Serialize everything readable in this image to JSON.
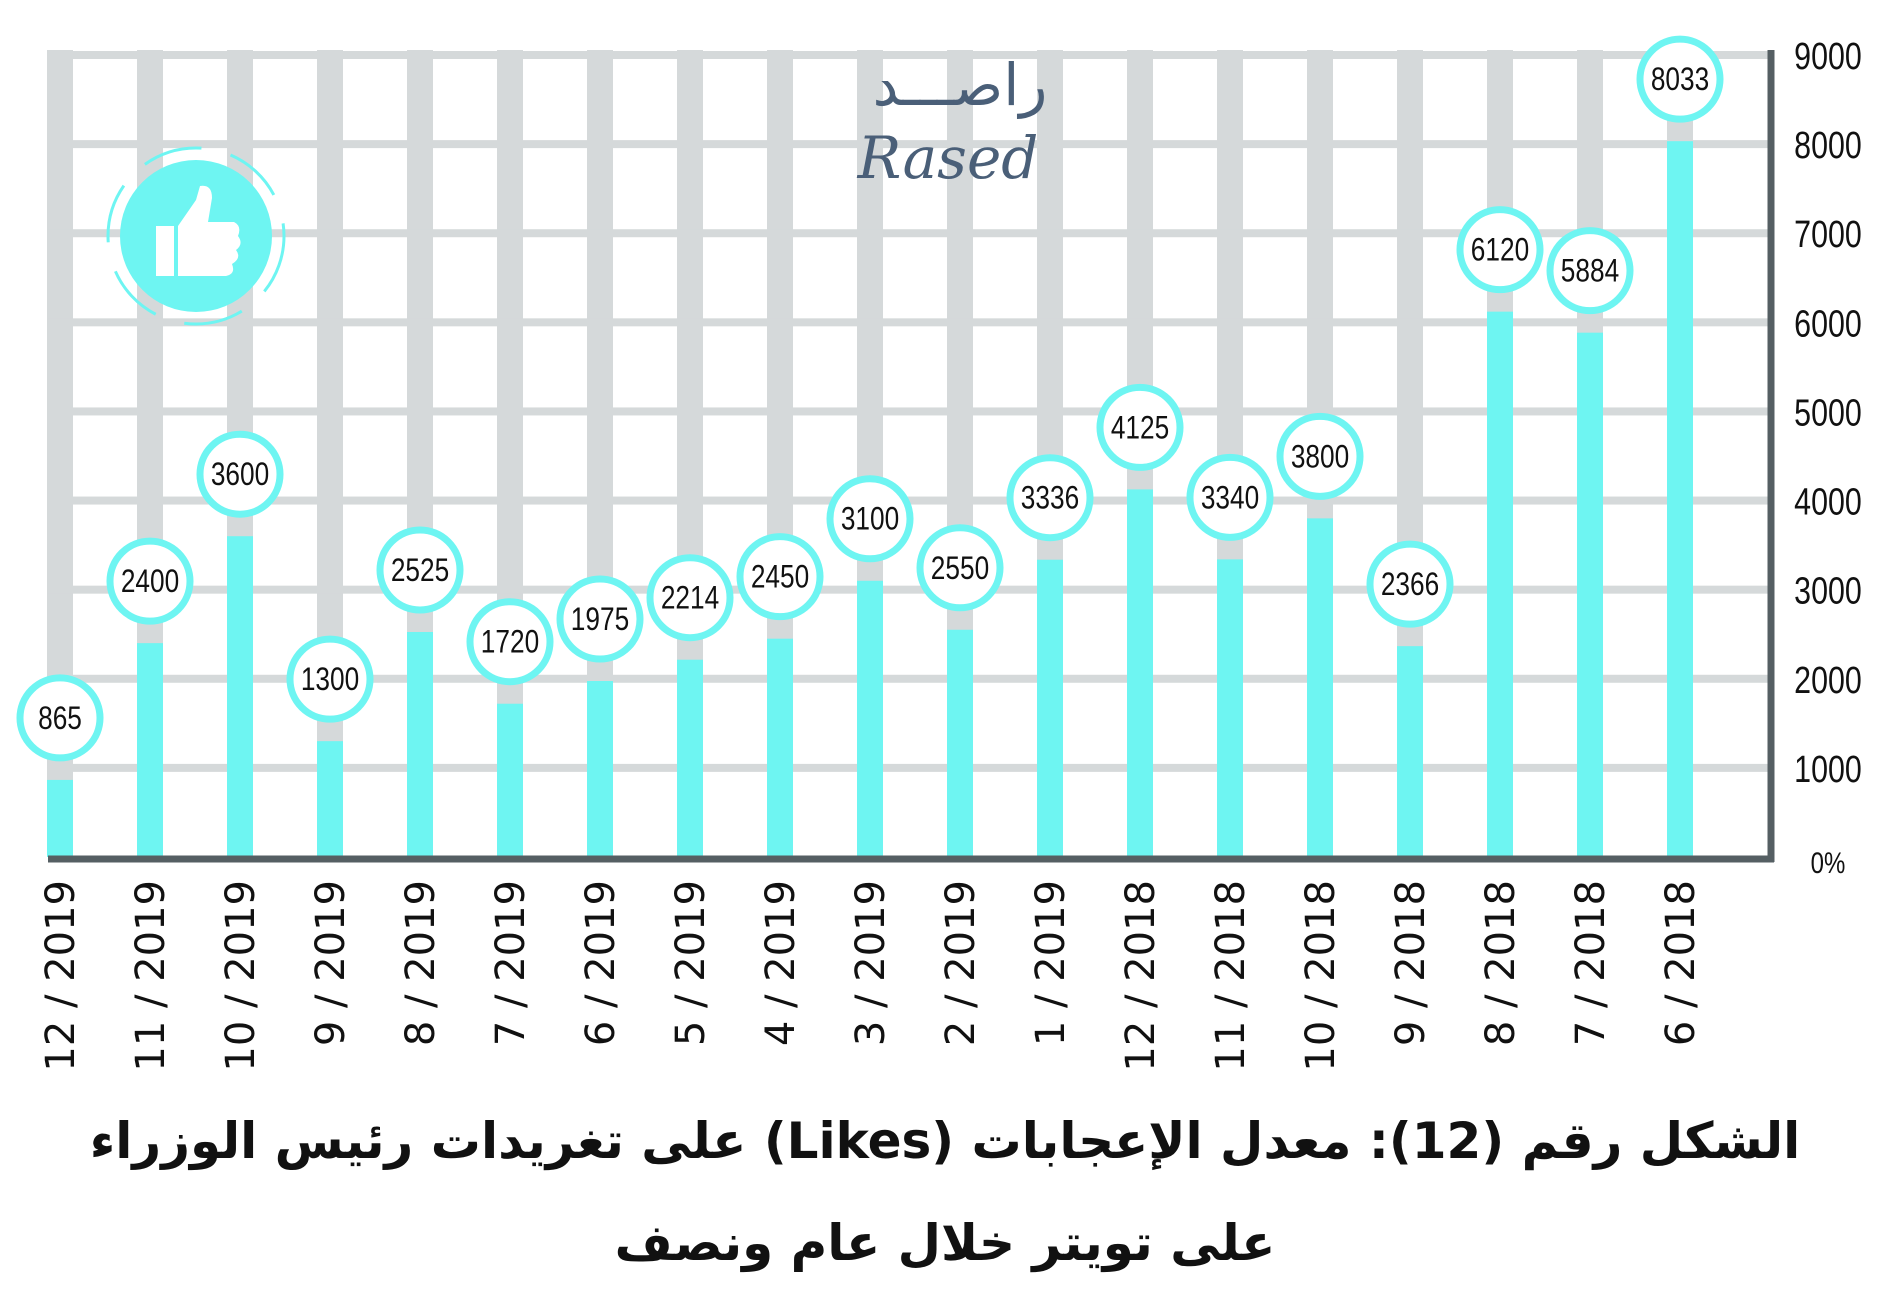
{
  "chart_data": {
    "type": "bar",
    "title": "الشكل رقم (12): معدل الإعجابات (Likes) على تغريدات رئيس الوزراء على تويتر خلال عام ونصف",
    "title_line1": "الشكل رقم (12): معدل الإعجابات (Likes) على تغريدات رئيس الوزراء",
    "title_line2": "على تويتر خلال عام ونصف",
    "categories": [
      "12 / 2019",
      "11 / 2019",
      "10 / 2019",
      "9 / 2019",
      "8 / 2019",
      "7 / 2019",
      "6 / 2019",
      "5 / 2019",
      "4 / 2019",
      "3 / 2019",
      "2 / 2019",
      "1 / 2019",
      "12 / 2018",
      "11 / 2018",
      "10 / 2018",
      "9 / 2018",
      "8 / 2018",
      "7 / 2018",
      "6 / 2018"
    ],
    "values": [
      865,
      2400,
      3600,
      1300,
      2525,
      1720,
      1975,
      2214,
      2450,
      3100,
      2550,
      3336,
      4125,
      3340,
      3800,
      2366,
      6120,
      5884,
      8033
    ],
    "ylim": [
      0,
      9000
    ],
    "yticks": [
      "0%",
      "1000",
      "2000",
      "3000",
      "4000",
      "5000",
      "6000",
      "7000",
      "8000",
      "9000"
    ],
    "ytick_values": [
      0,
      1000,
      2000,
      3000,
      4000,
      5000,
      6000,
      7000,
      8000,
      9000
    ],
    "yaxis_position": "right",
    "grid": true,
    "xlabel": "",
    "ylabel": ""
  },
  "logo": {
    "arabic": "راصـــد",
    "latin": "Rased"
  },
  "icons": {
    "like": "thumbs-up-icon"
  },
  "colors": {
    "bar": "#6ef5f2",
    "grid": "#d5d9da",
    "axis": "#555f63",
    "logo": "#4a5f78",
    "label_ring": "#6ef5f2"
  }
}
